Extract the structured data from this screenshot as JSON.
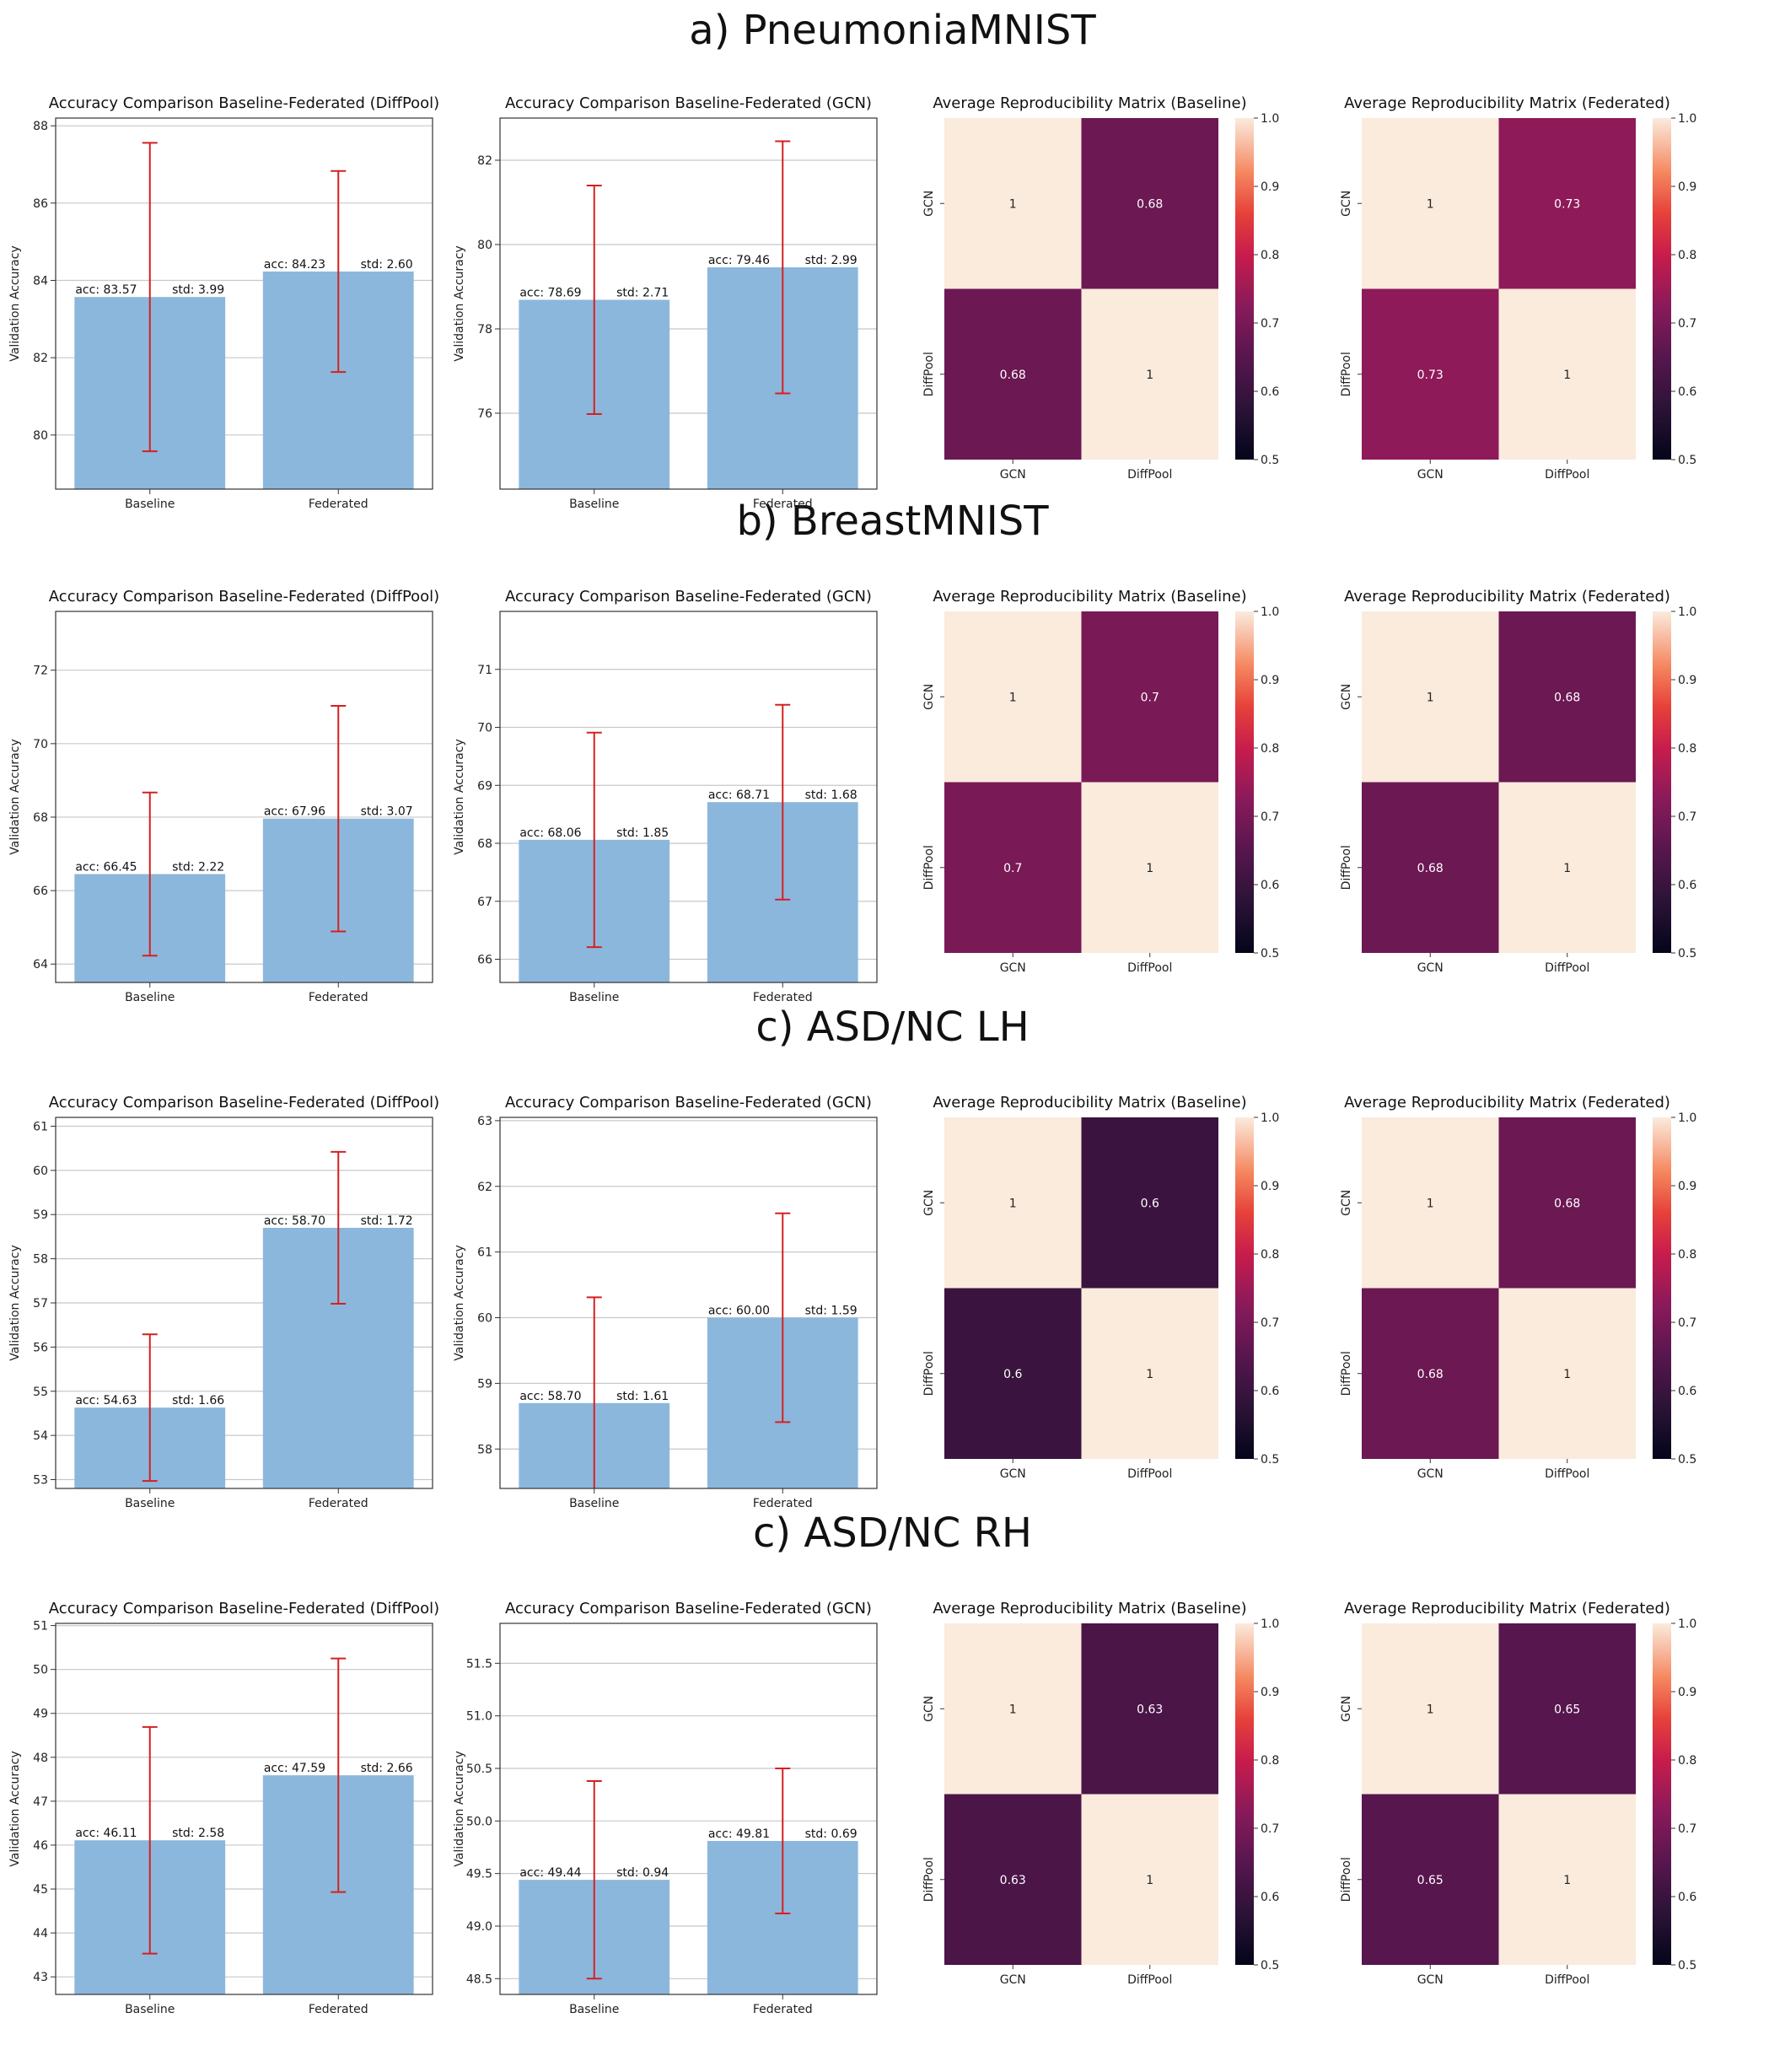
{
  "colors": {
    "bar": "#8cb7dc",
    "errorbar": "#d42020",
    "grid": "#c8c8c8",
    "axis": "#333333",
    "heat_low": "#03051a",
    "heat_high": "#faebdd"
  },
  "sections": [
    {
      "title": "a) PneumoniaMNIST"
    },
    {
      "title": "b) BreastMNIST"
    },
    {
      "title": "c) ASD/NC LH"
    },
    {
      "title": "c) ASD/NC RH"
    }
  ],
  "chart_data": [
    {
      "type": "bar",
      "section": 0,
      "col": 0,
      "title": "Accuracy Comparison Baseline-Federated (DiffPool)",
      "ylabel": "Validation Accuracy",
      "xlabel": "",
      "categories": [
        "Baseline",
        "Federated"
      ],
      "values": [
        83.57,
        84.23
      ],
      "errors": [
        3.99,
        2.6
      ],
      "bar_labels": [
        {
          "acc": "acc: 83.57",
          "std": "std: 3.99"
        },
        {
          "acc": "acc: 84.23",
          "std": "std: 2.60"
        }
      ],
      "ylim": [
        78.6,
        88.2
      ],
      "yticks": [
        80,
        82,
        84,
        86,
        88
      ],
      "grid": true
    },
    {
      "type": "bar",
      "section": 0,
      "col": 1,
      "title": "Accuracy Comparison Baseline-Federated (GCN)",
      "ylabel": "Validation Accuracy",
      "xlabel": "",
      "categories": [
        "Baseline",
        "Federated"
      ],
      "values": [
        78.69,
        79.46
      ],
      "errors": [
        2.71,
        2.99
      ],
      "bar_labels": [
        {
          "acc": "acc: 78.69",
          "std": "std: 2.71"
        },
        {
          "acc": "acc: 79.46",
          "std": "std: 2.99"
        }
      ],
      "ylim": [
        74.2,
        83.0
      ],
      "yticks": [
        76,
        78,
        80,
        82
      ],
      "grid": true
    },
    {
      "type": "heatmap",
      "section": 0,
      "col": 2,
      "title": "Average Reproducibility Matrix (Baseline)",
      "x_labels": [
        "GCN",
        "DiffPool"
      ],
      "y_labels": [
        "GCN",
        "DiffPool"
      ],
      "matrix": [
        [
          1,
          0.68
        ],
        [
          0.68,
          1
        ]
      ],
      "cell_labels": [
        [
          "1",
          "0.68"
        ],
        [
          "0.68",
          "1"
        ]
      ],
      "vmin": 0.5,
      "vmax": 1.0,
      "colorbar_ticks": [
        "0.5",
        "0.6",
        "0.7",
        "0.8",
        "0.9",
        "1.0"
      ]
    },
    {
      "type": "heatmap",
      "section": 0,
      "col": 3,
      "title": "Average Reproducibility Matrix (Federated)",
      "x_labels": [
        "GCN",
        "DiffPool"
      ],
      "y_labels": [
        "GCN",
        "DiffPool"
      ],
      "matrix": [
        [
          1,
          0.73
        ],
        [
          0.73,
          1
        ]
      ],
      "cell_labels": [
        [
          "1",
          "0.73"
        ],
        [
          "0.73",
          "1"
        ]
      ],
      "vmin": 0.5,
      "vmax": 1.0,
      "colorbar_ticks": [
        "0.5",
        "0.6",
        "0.7",
        "0.8",
        "0.9",
        "1.0"
      ]
    },
    {
      "type": "bar",
      "section": 1,
      "col": 0,
      "title": "Accuracy Comparison Baseline-Federated (DiffPool)",
      "ylabel": "Validation Accuracy",
      "xlabel": "",
      "categories": [
        "Baseline",
        "Federated"
      ],
      "values": [
        66.45,
        67.96
      ],
      "errors": [
        2.22,
        3.07
      ],
      "bar_labels": [
        {
          "acc": "acc: 66.45",
          "std": "std: 2.22"
        },
        {
          "acc": "acc: 67.96",
          "std": "std: 3.07"
        }
      ],
      "ylim": [
        63.5,
        73.6
      ],
      "yticks": [
        64,
        66,
        68,
        70,
        72
      ],
      "grid": true
    },
    {
      "type": "bar",
      "section": 1,
      "col": 1,
      "title": "Accuracy Comparison Baseline-Federated (GCN)",
      "ylabel": "Validation Accuracy",
      "xlabel": "",
      "categories": [
        "Baseline",
        "Federated"
      ],
      "values": [
        68.06,
        68.71
      ],
      "errors": [
        1.85,
        1.68
      ],
      "bar_labels": [
        {
          "acc": "acc: 68.06",
          "std": "std: 1.85"
        },
        {
          "acc": "acc: 68.71",
          "std": "std: 1.68"
        }
      ],
      "ylim": [
        65.6,
        72.0
      ],
      "yticks": [
        66,
        67,
        68,
        69,
        70,
        71
      ],
      "grid": true
    },
    {
      "type": "heatmap",
      "section": 1,
      "col": 2,
      "title": "Average Reproducibility Matrix (Baseline)",
      "x_labels": [
        "GCN",
        "DiffPool"
      ],
      "y_labels": [
        "GCN",
        "DiffPool"
      ],
      "matrix": [
        [
          1,
          0.7
        ],
        [
          0.7,
          1
        ]
      ],
      "cell_labels": [
        [
          "1",
          "0.7"
        ],
        [
          "0.7",
          "1"
        ]
      ],
      "vmin": 0.5,
      "vmax": 1.0,
      "colorbar_ticks": [
        "0.5",
        "0.6",
        "0.7",
        "0.8",
        "0.9",
        "1.0"
      ]
    },
    {
      "type": "heatmap",
      "section": 1,
      "col": 3,
      "title": "Average Reproducibility Matrix (Federated)",
      "x_labels": [
        "GCN",
        "DiffPool"
      ],
      "y_labels": [
        "GCN",
        "DiffPool"
      ],
      "matrix": [
        [
          1,
          0.68
        ],
        [
          0.68,
          1
        ]
      ],
      "cell_labels": [
        [
          "1",
          "0.68"
        ],
        [
          "0.68",
          "1"
        ]
      ],
      "vmin": 0.5,
      "vmax": 1.0,
      "colorbar_ticks": [
        "0.5",
        "0.6",
        "0.7",
        "0.8",
        "0.9",
        "1.0"
      ]
    },
    {
      "type": "bar",
      "section": 2,
      "col": 0,
      "title": "Accuracy Comparison Baseline-Federated (DiffPool)",
      "ylabel": "Validation Accuracy",
      "xlabel": "",
      "categories": [
        "Baseline",
        "Federated"
      ],
      "values": [
        54.63,
        58.7
      ],
      "errors": [
        1.66,
        1.72
      ],
      "bar_labels": [
        {
          "acc": "acc: 54.63",
          "std": "std: 1.66"
        },
        {
          "acc": "acc: 58.70",
          "std": "std: 1.72"
        }
      ],
      "ylim": [
        52.8,
        61.2
      ],
      "yticks": [
        53,
        54,
        55,
        56,
        57,
        58,
        59,
        60,
        61
      ],
      "grid": true
    },
    {
      "type": "bar",
      "section": 2,
      "col": 1,
      "title": "Accuracy Comparison Baseline-Federated (GCN)",
      "ylabel": "Validation Accuracy",
      "xlabel": "",
      "categories": [
        "Baseline",
        "Federated"
      ],
      "values": [
        58.7,
        60.0
      ],
      "errors": [
        1.61,
        1.59
      ],
      "bar_labels": [
        {
          "acc": "acc: 58.70",
          "std": "std: 1.61"
        },
        {
          "acc": "acc: 60.00",
          "std": "std: 1.59"
        }
      ],
      "ylim": [
        57.4,
        63.05
      ],
      "yticks": [
        58,
        59,
        60,
        61,
        62,
        63
      ],
      "grid": true
    },
    {
      "type": "heatmap",
      "section": 2,
      "col": 2,
      "title": "Average Reproducibility Matrix (Baseline)",
      "x_labels": [
        "GCN",
        "DiffPool"
      ],
      "y_labels": [
        "GCN",
        "DiffPool"
      ],
      "matrix": [
        [
          1,
          0.6
        ],
        [
          0.6,
          1
        ]
      ],
      "cell_labels": [
        [
          "1",
          "0.6"
        ],
        [
          "0.6",
          "1"
        ]
      ],
      "vmin": 0.5,
      "vmax": 1.0,
      "colorbar_ticks": [
        "0.5",
        "0.6",
        "0.7",
        "0.8",
        "0.9",
        "1.0"
      ]
    },
    {
      "type": "heatmap",
      "section": 2,
      "col": 3,
      "title": "Average Reproducibility Matrix (Federated)",
      "x_labels": [
        "GCN",
        "DiffPool"
      ],
      "y_labels": [
        "GCN",
        "DiffPool"
      ],
      "matrix": [
        [
          1,
          0.68
        ],
        [
          0.68,
          1
        ]
      ],
      "cell_labels": [
        [
          "1",
          "0.68"
        ],
        [
          "0.68",
          "1"
        ]
      ],
      "vmin": 0.5,
      "vmax": 1.0,
      "colorbar_ticks": [
        "0.5",
        "0.6",
        "0.7",
        "0.8",
        "0.9",
        "1.0"
      ]
    },
    {
      "type": "bar",
      "section": 3,
      "col": 0,
      "title": "Accuracy Comparison Baseline-Federated (DiffPool)",
      "ylabel": "Validation Accuracy",
      "xlabel": "",
      "categories": [
        "Baseline",
        "Federated"
      ],
      "values": [
        46.11,
        47.59
      ],
      "errors": [
        2.58,
        2.66
      ],
      "bar_labels": [
        {
          "acc": "acc: 46.11",
          "std": "std: 2.58"
        },
        {
          "acc": "acc: 47.59",
          "std": "std: 2.66"
        }
      ],
      "ylim": [
        42.6,
        51.05
      ],
      "yticks": [
        43,
        44,
        45,
        46,
        47,
        48,
        49,
        50,
        51
      ],
      "grid": true
    },
    {
      "type": "bar",
      "section": 3,
      "col": 1,
      "title": "Accuracy Comparison Baseline-Federated (GCN)",
      "ylabel": "Validation Accuracy",
      "xlabel": "",
      "categories": [
        "Baseline",
        "Federated"
      ],
      "values": [
        49.44,
        49.81
      ],
      "errors": [
        0.94,
        0.69
      ],
      "bar_labels": [
        {
          "acc": "acc: 49.44",
          "std": "std: 0.94"
        },
        {
          "acc": "acc: 49.81",
          "std": "std: 0.69"
        }
      ],
      "ylim": [
        48.35,
        51.88
      ],
      "yticks": [
        "48.5",
        "49.0",
        "49.5",
        "50.0",
        "50.5",
        "51.0",
        "51.5"
      ],
      "grid": true
    },
    {
      "type": "heatmap",
      "section": 3,
      "col": 2,
      "title": "Average Reproducibility Matrix (Baseline)",
      "x_labels": [
        "GCN",
        "DiffPool"
      ],
      "y_labels": [
        "GCN",
        "DiffPool"
      ],
      "matrix": [
        [
          1,
          0.63
        ],
        [
          0.63,
          1
        ]
      ],
      "cell_labels": [
        [
          "1",
          "0.63"
        ],
        [
          "0.63",
          "1"
        ]
      ],
      "vmin": 0.5,
      "vmax": 1.0,
      "colorbar_ticks": [
        "0.5",
        "0.6",
        "0.7",
        "0.8",
        "0.9",
        "1.0"
      ]
    },
    {
      "type": "heatmap",
      "section": 3,
      "col": 3,
      "title": "Average Reproducibility Matrix (Federated)",
      "x_labels": [
        "GCN",
        "DiffPool"
      ],
      "y_labels": [
        "GCN",
        "DiffPool"
      ],
      "matrix": [
        [
          1,
          0.65
        ],
        [
          0.65,
          1
        ]
      ],
      "cell_labels": [
        [
          "1",
          "0.65"
        ],
        [
          "0.65",
          "1"
        ]
      ],
      "vmin": 0.5,
      "vmax": 1.0,
      "colorbar_ticks": [
        "0.5",
        "0.6",
        "0.7",
        "0.8",
        "0.9",
        "1.0"
      ]
    }
  ]
}
